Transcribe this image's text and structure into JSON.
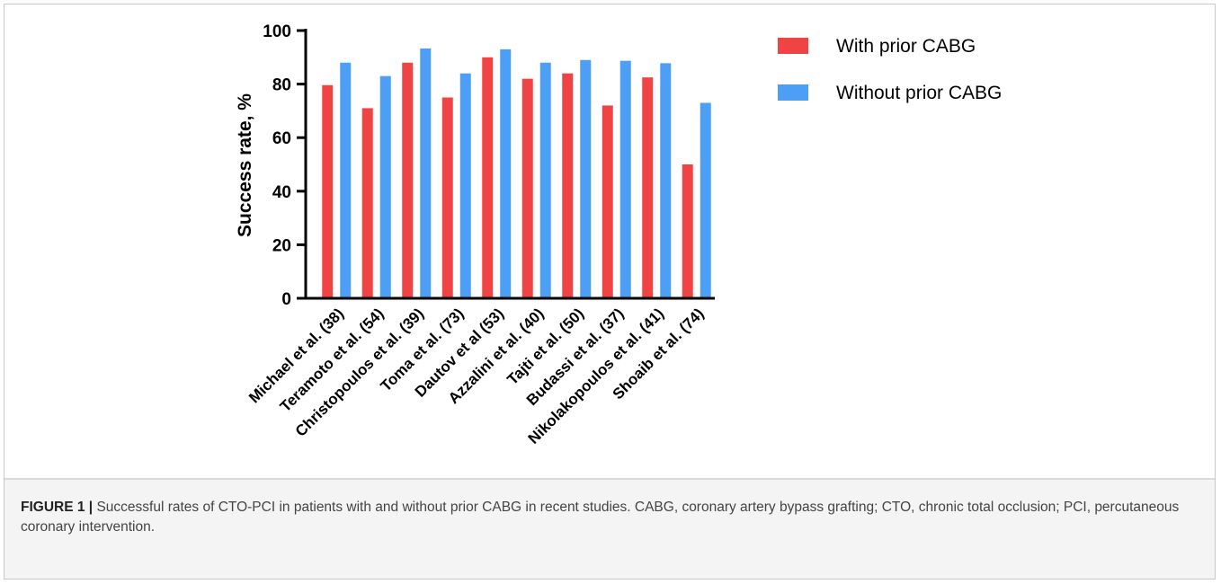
{
  "chart_data": {
    "type": "bar",
    "categories": [
      "Michael et al. (38)",
      "Teramoto et al. (54)",
      "Christopoulos et al. (39)",
      "Toma et al. (73)",
      "Dautov et al (53)",
      "Azzalini et al. (40)",
      "Tajti et al. (50)",
      "Budassi et al. (37)",
      "Nikolakopoulos et al. (41)",
      "Shoaib et al. (74)"
    ],
    "series": [
      {
        "name": "With prior CABG",
        "color": "#f04343",
        "values": [
          79.6,
          71,
          88,
          75,
          90,
          82,
          84,
          72,
          82.5,
          50
        ]
      },
      {
        "name": "Without prior CABG",
        "color": "#4d9ff5",
        "values": [
          88,
          83,
          93.3,
          84,
          93,
          88,
          89,
          88.7,
          87.8,
          73
        ]
      }
    ],
    "ylabel": "Success rate, %",
    "ylim": [
      0,
      100
    ],
    "yticks": [
      "0",
      "20",
      "40",
      "60",
      "80",
      "100"
    ],
    "legend_position": "top-right",
    "grid": false
  },
  "caption": {
    "label": "FIGURE 1 |",
    "text": "Successful rates of CTO-PCI in patients with and without prior CABG in recent studies. CABG, coronary artery bypass grafting; CTO, chronic total occlusion; PCI, percutaneous coronary intervention."
  }
}
